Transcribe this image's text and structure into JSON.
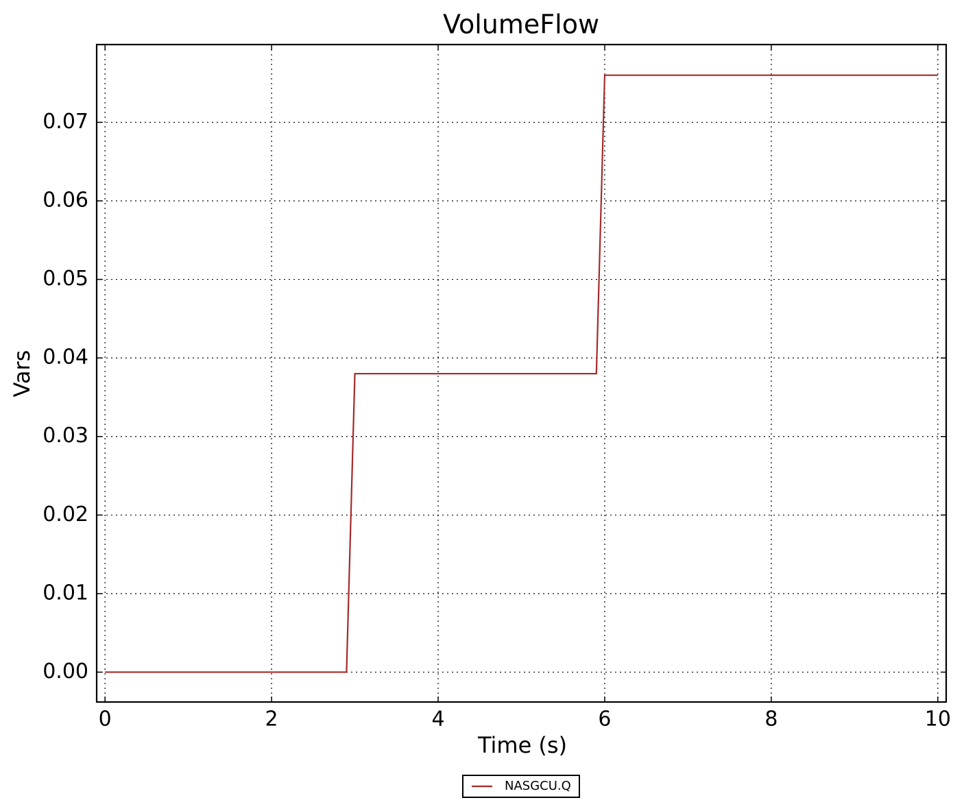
{
  "chart_data": {
    "type": "line",
    "title": "VolumeFlow",
    "x_label": "Time (s)",
    "y_label": "Vars",
    "x": [
      0,
      2.9,
      3.0,
      5.9,
      6.0,
      10
    ],
    "series": [
      {
        "name": "NASGCU.Q",
        "color": "#a52a2a",
        "values": [
          0,
          0,
          0.038,
          0.038,
          0.076,
          0.076
        ]
      }
    ],
    "xlim": [
      -0.1,
      10.1
    ],
    "ylim": [
      -0.0038,
      0.0799
    ],
    "xticks": [
      0,
      2,
      4,
      6,
      8,
      10
    ],
    "yticks": [
      {
        "value": 0,
        "label": "0.00"
      },
      0.01,
      0.02,
      0.03,
      0.04,
      0.05,
      0.06,
      0.07
    ],
    "grid": true,
    "legend": "bottom"
  }
}
